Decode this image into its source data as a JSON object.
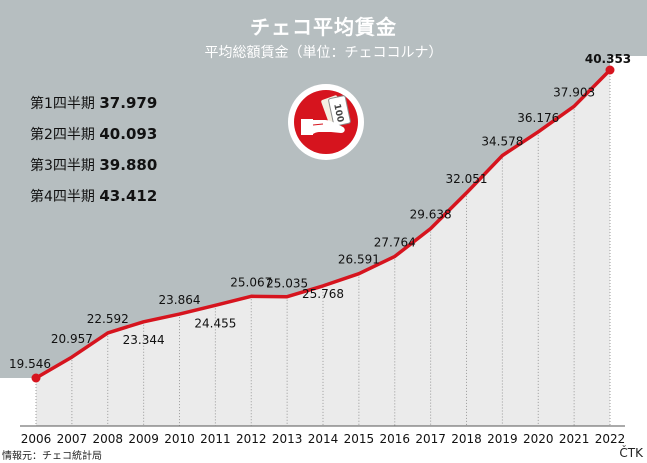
{
  "title": "チェコ平均賃金",
  "subtitle": "平均総額賃金（単位：チェココルナ）",
  "quarters": [
    {
      "label": "第1四半期",
      "value": "37.979"
    },
    {
      "label": "第2四半期",
      "value": "40.093"
    },
    {
      "label": "第3四半期",
      "value": "39.880"
    },
    {
      "label": "第4四半期",
      "value": "43.412"
    }
  ],
  "source": "情報元：チェコ統計局",
  "credit": "ČTK",
  "icon": "hand-holding-money-icon",
  "colors": {
    "header_bg": "#b6bec0",
    "line": "#d6141e",
    "area": "#ebebeb",
    "icon_bg": "#d6141e"
  },
  "chart_data": {
    "type": "line",
    "title": "チェコ平均賃金",
    "subtitle": "平均総額賃金（単位：チェココルナ）",
    "categories": [
      "2006",
      "2007",
      "2008",
      "2009",
      "2010",
      "2011",
      "2012",
      "2013",
      "2014",
      "2015",
      "2016",
      "2017",
      "2018",
      "2019",
      "2020",
      "2021",
      "2022"
    ],
    "values": [
      19546,
      20957,
      22592,
      23344,
      23864,
      24455,
      25067,
      25035,
      25768,
      26591,
      27764,
      29638,
      32051,
      34578,
      36176,
      37903,
      40353
    ],
    "labels": [
      "19.546",
      "20.957",
      "22.592",
      "23.344",
      "23.864",
      "24.455",
      "25.067",
      "25.035",
      "25.768",
      "26.591",
      "27.764",
      "29.638",
      "32.051",
      "34.578",
      "36.176",
      "37.903",
      "40.353"
    ],
    "grid": "vertical dotted lines",
    "legend": "none"
  }
}
